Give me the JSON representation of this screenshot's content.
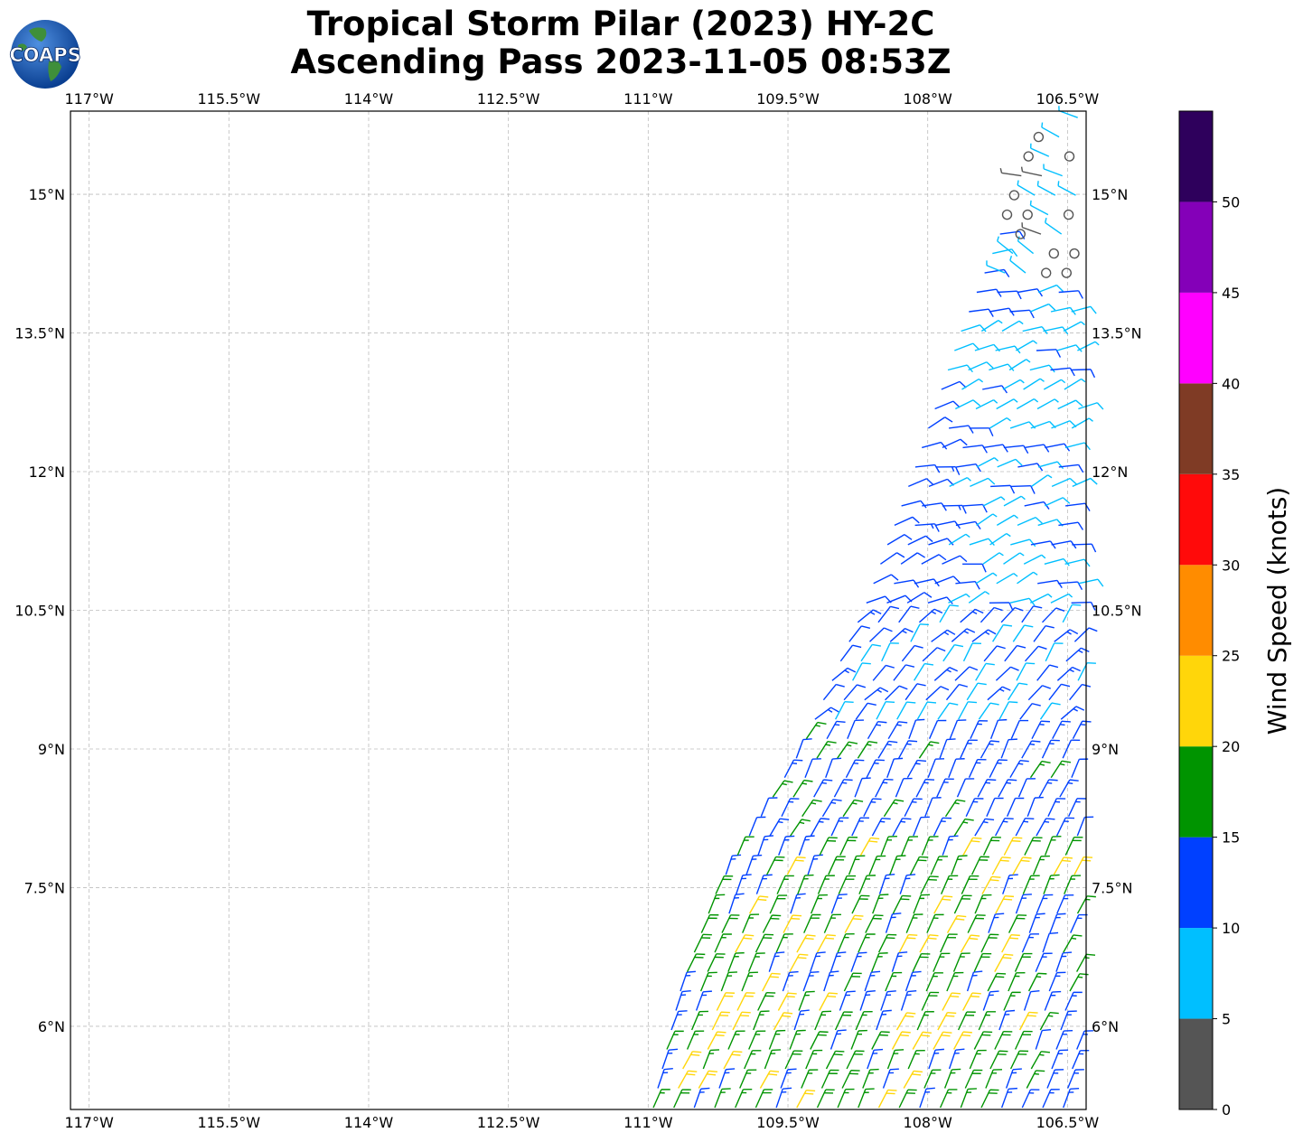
{
  "title_line1": "Tropical Storm Pilar (2023) HY-2C",
  "title_line2": "Ascending Pass 2023-11-05 08:53Z",
  "logo_text": "COAPS",
  "map": {
    "lon_labels": [
      "117°W",
      "115.5°W",
      "114°W",
      "112.5°W",
      "111°W",
      "109.5°W",
      "108°W",
      "106.5°W"
    ],
    "lat_labels": [
      "15°N",
      "13.5°N",
      "12°N",
      "10.5°N",
      "9°N",
      "7.5°N",
      "6°N"
    ],
    "lon_values": [
      -117,
      -115.5,
      -114,
      -112.5,
      -111,
      -109.5,
      -108,
      -106.5
    ],
    "lat_values": [
      15,
      13.5,
      12,
      10.5,
      9,
      7.5,
      6
    ],
    "lon_range": [
      -117.2,
      -106.3
    ],
    "lat_range": [
      5.1,
      15.9
    ],
    "gridlines": true
  },
  "swath": {
    "nodes": [
      {
        "lon": -111.0,
        "lat": 5.1
      },
      {
        "lon": -110.7,
        "lat": 6.4
      },
      {
        "lon": -110.3,
        "lat": 7.5
      },
      {
        "lon": -109.4,
        "lat": 9.0
      },
      {
        "lon": -108.7,
        "lat": 10.6
      },
      {
        "lon": -108.2,
        "lat": 12.0
      },
      {
        "lon": -107.7,
        "lat": 13.5
      },
      {
        "lon": -107.3,
        "lat": 14.5
      },
      {
        "lon": -106.9,
        "lat": 15.6
      },
      {
        "lon": -106.3,
        "lat": 15.9
      }
    ],
    "slow_zone_north_of_lat": 14.1,
    "fresh_zone_north_of_lat": 9.2
  },
  "colorbar": {
    "label": "Wind Speed (knots)",
    "ticks": [
      "0",
      "5",
      "10",
      "15",
      "20",
      "25",
      "30",
      "35",
      "40",
      "45",
      "50"
    ],
    "bins": [
      {
        "from": 0,
        "to": 5,
        "color": "#555555"
      },
      {
        "from": 5,
        "to": 10,
        "color": "#00bfff"
      },
      {
        "from": 10,
        "to": 15,
        "color": "#0040ff"
      },
      {
        "from": 15,
        "to": 20,
        "color": "#009400"
      },
      {
        "from": 20,
        "to": 25,
        "color": "#ffd60a"
      },
      {
        "from": 25,
        "to": 30,
        "color": "#ff8c00"
      },
      {
        "from": 30,
        "to": 35,
        "color": "#ff0a0a"
      },
      {
        "from": 35,
        "to": 40,
        "color": "#7f3b25"
      },
      {
        "from": 40,
        "to": 45,
        "color": "#ff00ff"
      },
      {
        "from": 45,
        "to": 50,
        "color": "#8400b8"
      },
      {
        "from": 50,
        "to": 55,
        "color": "#2e005c"
      }
    ]
  }
}
